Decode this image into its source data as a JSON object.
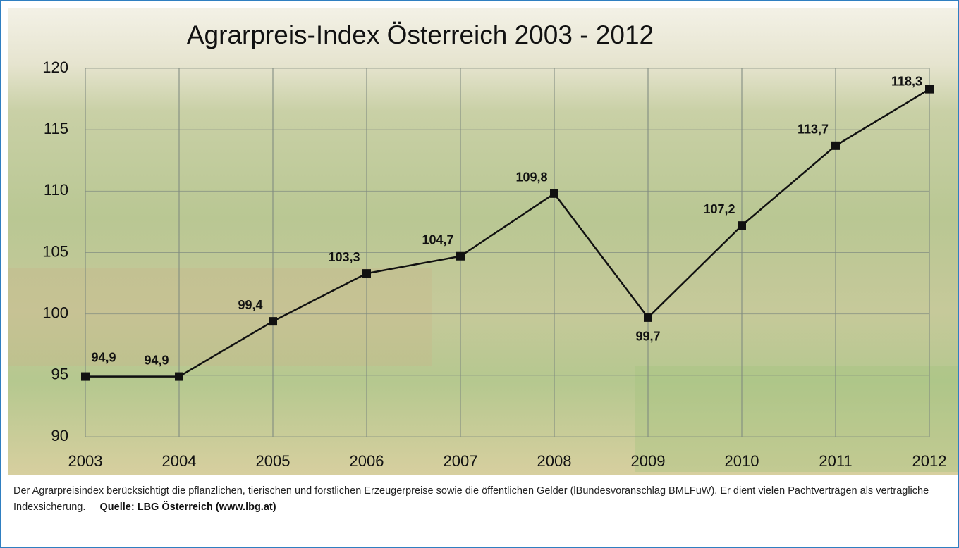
{
  "chart_data": {
    "type": "line",
    "title": "Agrarpreis-Index Österreich 2003 - 2012",
    "x": [
      2003,
      2004,
      2005,
      2006,
      2007,
      2008,
      2009,
      2010,
      2011,
      2012
    ],
    "values": [
      94.9,
      94.9,
      99.4,
      103.3,
      104.7,
      109.8,
      99.7,
      107.2,
      113.7,
      118.3
    ],
    "value_labels": [
      "94,9",
      "94,9",
      "99,4",
      "103,3",
      "104,7",
      "109,8",
      "99,7",
      "107,2",
      "113,7",
      "118,3"
    ],
    "color": "#111111",
    "xlim": [
      2003,
      2012
    ],
    "xticks": [
      2003,
      2004,
      2005,
      2006,
      2007,
      2008,
      2009,
      2010,
      2011,
      2012
    ],
    "ylim": [
      90,
      120
    ],
    "yticks": [
      90,
      95,
      100,
      105,
      110,
      115,
      120
    ],
    "grid": true,
    "caption": "Der Agrarpreisindex berücksichtigt die pflanzlichen, tierischen und forstlichen Erzeugerpreise sowie die öffentlichen Gelder (lBundesvoranschlag BMLFuW). Er dient vielen Pachtverträgen als vertragliche Indexsicherung.",
    "source": "Quelle: LBG Österreich (www.lbg.at)"
  }
}
